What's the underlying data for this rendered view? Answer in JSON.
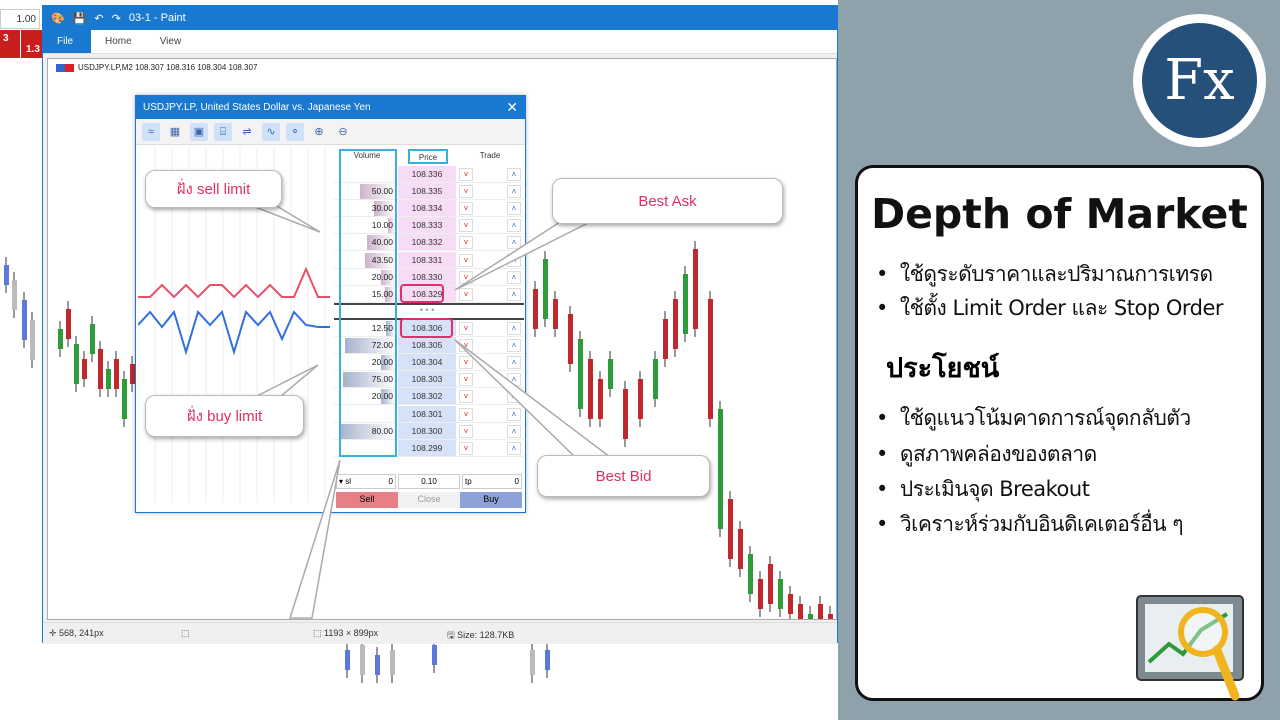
{
  "background": {
    "lot_value": "1.00",
    "tiles": [
      "3",
      "1.3"
    ]
  },
  "paint": {
    "title": "03-1 - Paint",
    "tabs": [
      "File",
      "Home",
      "View"
    ],
    "chart_header": "USDJPY.LP,M2  108.307 108.316 108.304 108.307",
    "status": {
      "cursor": "568, 241px",
      "selection": "",
      "dimensions": "1193 × 899px",
      "size": "Size: 128.7KB"
    }
  },
  "dom": {
    "title": "USDJPY.LP, United States Dollar vs. Japanese Yen",
    "close": "✕",
    "headers": {
      "volume": "Volume",
      "price": "Price",
      "trade": "Trade"
    },
    "asks": [
      {
        "volume": "",
        "price": "108.336"
      },
      {
        "volume": "50.00",
        "price": "108.335"
      },
      {
        "volume": "30.00",
        "price": "108.334"
      },
      {
        "volume": "10.00",
        "price": "108.333"
      },
      {
        "volume": "40.00",
        "price": "108.332"
      },
      {
        "volume": "43.50",
        "price": "108.331"
      },
      {
        "volume": "20.00",
        "price": "108.330"
      },
      {
        "volume": "15.00",
        "price": "108.329"
      }
    ],
    "bids": [
      {
        "volume": "12.50",
        "price": "108.306"
      },
      {
        "volume": "72.00",
        "price": "108.305"
      },
      {
        "volume": "20.00",
        "price": "108.304"
      },
      {
        "volume": "75.00",
        "price": "108.303"
      },
      {
        "volume": "20.00",
        "price": "108.302"
      },
      {
        "volume": "",
        "price": "108.301"
      },
      {
        "volume": "80.00",
        "price": "108.300"
      },
      {
        "volume": "",
        "price": "108.299"
      }
    ],
    "spread_marker": "• • •",
    "sl_value": "0",
    "lot_value": "0.10",
    "tp_value": "0",
    "sl_label": "sl",
    "tp_label": "tp",
    "buttons": {
      "sell": "Sell",
      "close": "Close",
      "buy": "Buy"
    },
    "colors": {
      "ask": "#f7dcf5",
      "bid": "#d6e2f7",
      "sell_line": "#e8506a",
      "buy_line": "#2f6fe0"
    }
  },
  "callouts": {
    "sell_limit": "ฝั่ง sell limit",
    "buy_limit": "ฝั่ง buy limit",
    "best_ask": "Best Ask",
    "best_bid": "Best Bid"
  },
  "card": {
    "title": "Depth of Market",
    "bullets": [
      "ใช้ดูระดับราคาและปริมาณการเทรด",
      "ใช้ตั้ง Limit Order และ  Stop Order"
    ],
    "benefit_heading": "ประโยชน์",
    "benefits": [
      "ใช้ดูแนวโน้มคาดการณ์จุดกลับตัว",
      "ดูสภาพคล่องของตลาด",
      "ประเมินจุด Breakout",
      "วิเคราะห์ร่วมกับอินดิเคเตอร์อื่น ๆ"
    ]
  },
  "logo": {
    "text": "Fx"
  }
}
